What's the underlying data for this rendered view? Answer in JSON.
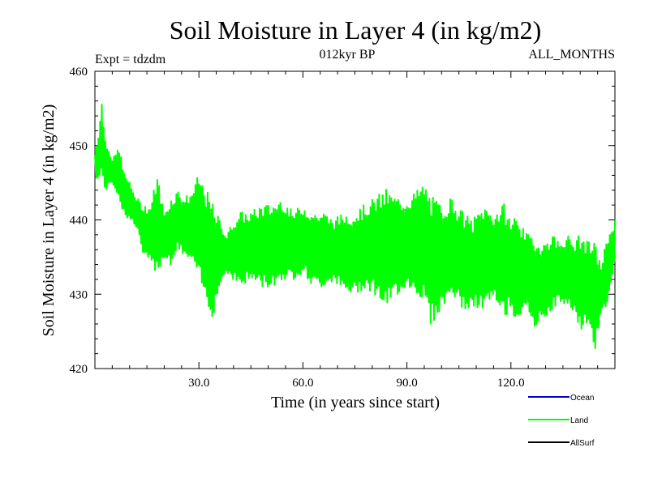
{
  "chart_data": {
    "type": "line",
    "title": "Soil Moisture in Layer 4 (in kg/m2)",
    "subtitle_left": "Expt = tdzdm",
    "subtitle_center": "012kyr BP",
    "subtitle_right": "ALL_MONTHS",
    "xlabel": "Time (in years since start)",
    "ylabel": "Soil Moisture in Layer 4 (in kg/m2)",
    "xlim": [
      0,
      150
    ],
    "ylim": [
      420,
      460
    ],
    "x_ticks": [
      30,
      60,
      90,
      120
    ],
    "x_tick_labels": [
      "30.0",
      "60.0",
      "90.0",
      "120.0"
    ],
    "y_ticks": [
      420,
      430,
      440,
      450,
      460
    ],
    "y_tick_labels": [
      "420",
      "430",
      "440",
      "450",
      "460"
    ],
    "legend": [
      {
        "name": "Ocean",
        "color": "#0000cc"
      },
      {
        "name": "Land",
        "color": "#00ff00"
      },
      {
        "name": "AllSurf",
        "color": "#000000"
      }
    ],
    "series": [
      {
        "name": "Land",
        "color": "#00ff00",
        "note": "monthly values, seasonal oscillation; envelope approximated below",
        "x": [
          0,
          1,
          2,
          3,
          4,
          5,
          6,
          7,
          8,
          10,
          12,
          14,
          16,
          18,
          20,
          22,
          24,
          26,
          28,
          30,
          32,
          34,
          36,
          38,
          40,
          42,
          45,
          48,
          51,
          54,
          57,
          60,
          63,
          66,
          69,
          72,
          75,
          78,
          81,
          84,
          87,
          90,
          93,
          95,
          97,
          100,
          103,
          106,
          109,
          112,
          115,
          118,
          120,
          122,
          124,
          126,
          128,
          130,
          132,
          134,
          136,
          138,
          140,
          142,
          144,
          146,
          148,
          150
        ],
        "max": [
          449,
          452,
          456,
          451,
          450,
          448,
          449,
          450,
          447,
          445,
          443,
          442,
          442,
          446,
          441,
          443,
          444,
          443,
          444,
          446,
          444,
          442,
          440,
          438,
          440,
          441,
          441,
          442,
          442,
          443,
          441,
          442,
          441,
          441,
          440,
          441,
          441,
          442,
          443,
          444,
          443,
          443,
          444,
          445,
          443,
          442,
          443,
          441,
          440,
          442,
          441,
          442,
          440,
          441,
          438,
          438,
          437,
          437,
          438,
          437,
          438,
          437,
          438,
          437,
          437,
          434,
          438,
          440
        ],
        "min": [
          446,
          445,
          446,
          444,
          444,
          445,
          444,
          443,
          441,
          440,
          439,
          435,
          434,
          433,
          435,
          434,
          436,
          435,
          434,
          432,
          429,
          427,
          431,
          433,
          432,
          431,
          432,
          431,
          431,
          432,
          432,
          433,
          431,
          431,
          432,
          430,
          430,
          431,
          430,
          428,
          430,
          431,
          430,
          429,
          426,
          428,
          430,
          428,
          428,
          428,
          429,
          427,
          428,
          426,
          429,
          425,
          426,
          427,
          428,
          429,
          428,
          428,
          425,
          426,
          422,
          427,
          429,
          434
        ]
      },
      {
        "name": "Ocean",
        "color": "#0000cc",
        "x": [],
        "values": []
      },
      {
        "name": "AllSurf",
        "color": "#000000",
        "x": [],
        "values": []
      }
    ]
  }
}
